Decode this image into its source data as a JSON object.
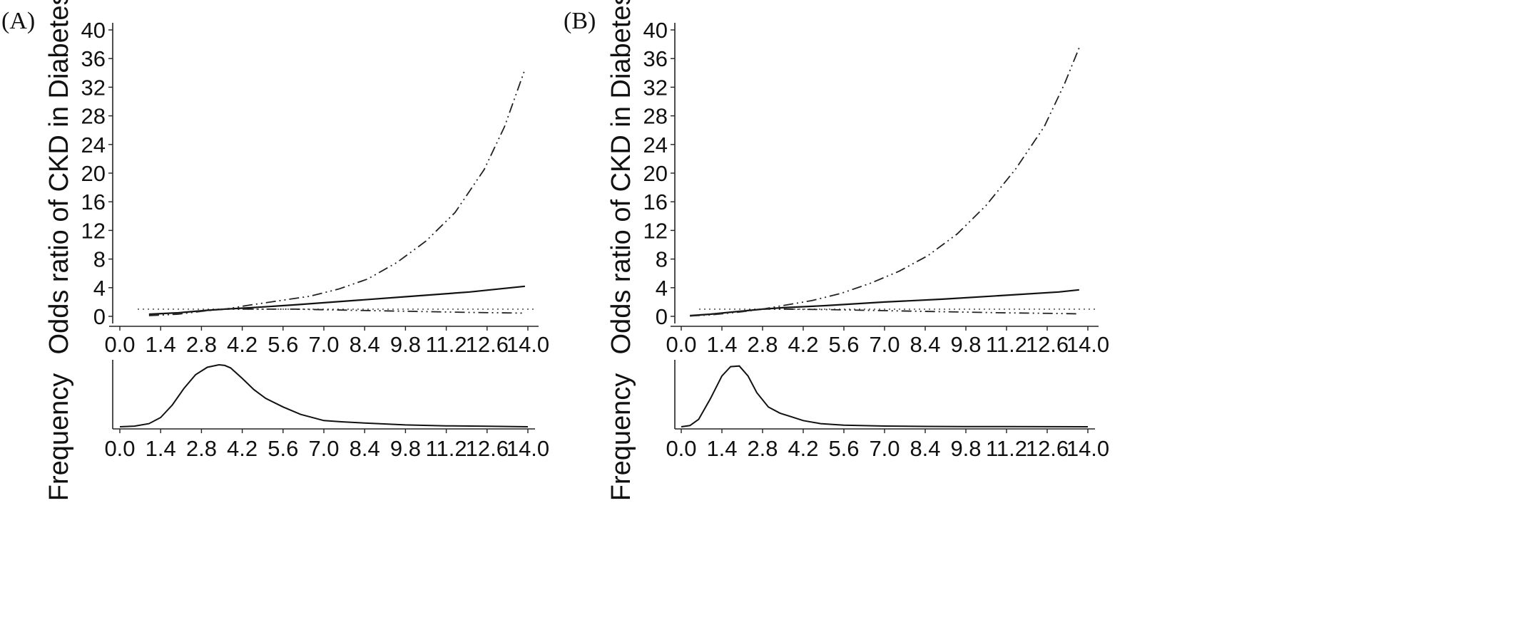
{
  "chart_data": [
    {
      "panel_label": "(A)",
      "type": "line",
      "ylabel": "Odds ratio of CKD in Diabetes",
      "ylim": [
        0,
        40
      ],
      "yticks": [
        "0",
        "4",
        "8",
        "12",
        "16",
        "20",
        "24",
        "28",
        "32",
        "36",
        "40"
      ],
      "xlim": [
        0,
        14
      ],
      "xticks": [
        {
          "value": 0.0,
          "label": "0.0"
        },
        {
          "value": 1.4,
          "label": "1.4"
        },
        {
          "value": 2.8,
          "label": "2.8"
        },
        {
          "value": 4.2,
          "label": "4.2"
        },
        {
          "value": 5.6,
          "label": "5.6"
        },
        {
          "value": 7.0,
          "label": "7.0"
        },
        {
          "value": 8.4,
          "label": "8.4"
        },
        {
          "value": 9.8,
          "label": "9.8"
        },
        {
          "value": 11.2,
          "label": "11.2"
        },
        {
          "value": 12.6,
          "label": "12.6"
        },
        {
          "value": 14.0,
          "label": "14.0"
        }
      ],
      "reference_line": 1,
      "series": [
        {
          "style": "solid",
          "x": [
            1.0,
            2.0,
            3.0,
            3.6,
            4.5,
            6.0,
            8.0,
            10.0,
            12.0,
            13.9
          ],
          "y": [
            0.3,
            0.5,
            0.85,
            1.0,
            1.2,
            1.6,
            2.2,
            2.8,
            3.4,
            4.2
          ]
        },
        {
          "style": "dash-dot-dot",
          "x": [
            1.0,
            2.0,
            3.0,
            3.6,
            4.5,
            5.5,
            6.5,
            7.5,
            8.5,
            9.5,
            10.5,
            11.5,
            12.5,
            13.2,
            13.9
          ],
          "y": [
            0.1,
            0.3,
            0.8,
            1.0,
            1.6,
            2.2,
            2.8,
            3.8,
            5.2,
            7.5,
            10.5,
            14.5,
            20.5,
            26.5,
            34.5
          ]
        },
        {
          "style": "long-dash",
          "x": [
            1.0,
            2.0,
            3.0,
            3.6,
            4.5,
            6.0,
            8.0,
            10.0,
            12.0,
            13.9
          ],
          "y": [
            0.2,
            0.45,
            0.8,
            1.0,
            1.0,
            1.0,
            0.85,
            0.7,
            0.55,
            0.45
          ]
        }
      ],
      "frequency": {
        "ylabel": "Frequency",
        "x": [
          0.0,
          0.5,
          1.0,
          1.4,
          1.8,
          2.2,
          2.6,
          3.0,
          3.4,
          3.6,
          3.8,
          4.2,
          4.6,
          5.0,
          5.6,
          6.2,
          7.0,
          7.6,
          8.4,
          9.8,
          11.2,
          12.6,
          14.0
        ],
        "density": [
          0.0,
          0.01,
          0.05,
          0.15,
          0.35,
          0.62,
          0.84,
          0.96,
          1.0,
          0.99,
          0.95,
          0.78,
          0.6,
          0.46,
          0.32,
          0.2,
          0.1,
          0.08,
          0.06,
          0.03,
          0.015,
          0.008,
          0.0
        ],
        "xticks": [
          "0.0",
          "1.4",
          "2.8",
          "4.2",
          "5.6",
          "7.0",
          "8.4",
          "9.8",
          "11.2",
          "12.6",
          "14.0"
        ]
      }
    },
    {
      "panel_label": "(B)",
      "type": "line",
      "ylabel": "Odds ratio of CKD in Diabetes",
      "ylim": [
        0,
        40
      ],
      "yticks": [
        "0",
        "4",
        "8",
        "12",
        "16",
        "20",
        "24",
        "28",
        "32",
        "36",
        "40"
      ],
      "xlim": [
        0,
        14
      ],
      "xticks": [
        {
          "value": 0.0,
          "label": "0.0"
        },
        {
          "value": 1.4,
          "label": "1.4"
        },
        {
          "value": 2.8,
          "label": "2.8"
        },
        {
          "value": 4.2,
          "label": "4.2"
        },
        {
          "value": 5.6,
          "label": "5.6"
        },
        {
          "value": 7.0,
          "label": "7.0"
        },
        {
          "value": 8.4,
          "label": "8.4"
        },
        {
          "value": 9.8,
          "label": "9.8"
        },
        {
          "value": 11.2,
          "label": "11.2"
        },
        {
          "value": 12.6,
          "label": "12.6"
        },
        {
          "value": 14.0,
          "label": "14.0"
        }
      ],
      "reference_line": 1,
      "series": [
        {
          "style": "solid",
          "x": [
            0.3,
            1.0,
            2.0,
            2.8,
            3.5,
            5.0,
            7.0,
            9.0,
            11.0,
            13.0,
            13.7
          ],
          "y": [
            0.1,
            0.3,
            0.7,
            1.0,
            1.2,
            1.5,
            2.0,
            2.4,
            2.9,
            3.4,
            3.7
          ]
        },
        {
          "style": "dash-dot-dot",
          "x": [
            0.3,
            1.0,
            2.0,
            2.8,
            3.5,
            4.5,
            5.5,
            6.5,
            7.5,
            8.5,
            9.5,
            10.5,
            11.5,
            12.5,
            13.2,
            13.7
          ],
          "y": [
            0.05,
            0.2,
            0.6,
            1.0,
            1.5,
            2.2,
            3.2,
            4.6,
            6.3,
            8.5,
            11.5,
            15.5,
            20.5,
            26.5,
            32.5,
            37.5
          ]
        },
        {
          "style": "long-dash",
          "x": [
            0.3,
            1.0,
            2.0,
            2.8,
            3.5,
            5.0,
            7.0,
            9.0,
            11.0,
            13.0,
            13.7
          ],
          "y": [
            0.05,
            0.3,
            0.7,
            1.0,
            1.0,
            0.95,
            0.8,
            0.65,
            0.5,
            0.4,
            0.35
          ]
        }
      ],
      "frequency": {
        "ylabel": "Frequency",
        "x": [
          0.0,
          0.3,
          0.6,
          1.0,
          1.4,
          1.7,
          2.0,
          2.3,
          2.6,
          3.0,
          3.4,
          3.8,
          4.2,
          4.8,
          5.6,
          7.0,
          8.4,
          9.8,
          11.2,
          12.6,
          14.0
        ],
        "density": [
          0.0,
          0.02,
          0.12,
          0.45,
          0.82,
          0.97,
          0.98,
          0.82,
          0.55,
          0.32,
          0.22,
          0.16,
          0.1,
          0.05,
          0.025,
          0.012,
          0.006,
          0.003,
          0.002,
          0.001,
          0.0
        ],
        "xticks": [
          "0.0",
          "1.4",
          "2.8",
          "4.2",
          "5.6",
          "7.0",
          "8.4",
          "9.8",
          "11.2",
          "12.6",
          "14.0"
        ]
      }
    }
  ]
}
